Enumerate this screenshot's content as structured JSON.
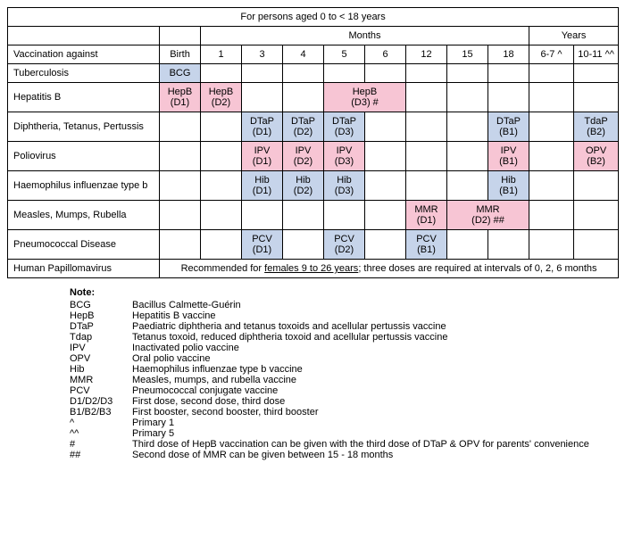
{
  "title": "For persons aged 0 to < 18 years",
  "headers": {
    "months": "Months",
    "years": "Years",
    "vaccination_against": "Vaccination against",
    "birth": "Birth",
    "m1": "1",
    "m3": "3",
    "m4": "4",
    "m5": "5",
    "m6": "6",
    "m12": "12",
    "m15": "15",
    "m18": "18",
    "y6_7": "6-7 ^",
    "y10_11": "10-11 ^^"
  },
  "rows": {
    "tb": {
      "label": "Tuberculosis",
      "birth": {
        "l1": "BCG",
        "l2": ""
      }
    },
    "hepb": {
      "label": "Hepatitis B",
      "birth": {
        "l1": "HepB",
        "l2": "(D1)"
      },
      "m1": {
        "l1": "HepB",
        "l2": "(D2)"
      },
      "m5_6": {
        "l1": "HepB",
        "l2": "(D3) #"
      }
    },
    "dtap": {
      "label": "Diphtheria, Tetanus, Pertussis",
      "m3": {
        "l1": "DTaP",
        "l2": "(D1)"
      },
      "m4": {
        "l1": "DTaP",
        "l2": "(D2)"
      },
      "m5": {
        "l1": "DTaP",
        "l2": "(D3)"
      },
      "m18": {
        "l1": "DTaP",
        "l2": "(B1)"
      },
      "y10_11": {
        "l1": "TdaP",
        "l2": "(B2)"
      }
    },
    "polio": {
      "label": "Poliovirus",
      "m3": {
        "l1": "IPV",
        "l2": "(D1)"
      },
      "m4": {
        "l1": "IPV",
        "l2": "(D2)"
      },
      "m5": {
        "l1": "IPV",
        "l2": "(D3)"
      },
      "m18": {
        "l1": "IPV",
        "l2": "(B1)"
      },
      "y10_11": {
        "l1": "OPV",
        "l2": "(B2)"
      }
    },
    "hib": {
      "label": "Haemophilus influenzae type b",
      "m3": {
        "l1": "Hib",
        "l2": "(D1)"
      },
      "m4": {
        "l1": "Hib",
        "l2": "(D2)"
      },
      "m5": {
        "l1": "Hib",
        "l2": "(D3)"
      },
      "m18": {
        "l1": "Hib",
        "l2": "(B1)"
      }
    },
    "mmr": {
      "label": "Measles, Mumps, Rubella",
      "m12": {
        "l1": "MMR",
        "l2": "(D1)"
      },
      "m15_18": {
        "l1": "MMR",
        "l2": "(D2) ##"
      }
    },
    "pcv": {
      "label": "Pneumococcal Disease",
      "m3": {
        "l1": "PCV",
        "l2": "(D1)"
      },
      "m5": {
        "l1": "PCV",
        "l2": "(D2)"
      },
      "m12": {
        "l1": "PCV",
        "l2": "(B1)"
      }
    },
    "hpv": {
      "label": "Human Papillomavirus",
      "text_pre": "Recommended for ",
      "text_u": "females 9 to 26 years",
      "text_post": "; three doses are required at intervals of 0, 2, 6 months"
    }
  },
  "notes": {
    "title": "Note:",
    "items": [
      {
        "abbr": "BCG",
        "def": "Bacillus Calmette-Guérin"
      },
      {
        "abbr": "HepB",
        "def": "Hepatitis B vaccine"
      },
      {
        "abbr": "DTaP",
        "def": "Paediatric diphtheria and tetanus toxoids and acellular pertussis vaccine"
      },
      {
        "abbr": "Tdap",
        "def": "Tetanus toxoid, reduced diphtheria toxoid and acellular pertussis vaccine"
      },
      {
        "abbr": "IPV",
        "def": "Inactivated polio vaccine"
      },
      {
        "abbr": "OPV",
        "def": "Oral polio vaccine"
      },
      {
        "abbr": "Hib",
        "def": "Haemophilus influenzae type b vaccine"
      },
      {
        "abbr": "MMR",
        "def": "Measles, mumps, and rubella vaccine"
      },
      {
        "abbr": "PCV",
        "def": "Pneumococcal conjugate vaccine"
      },
      {
        "abbr": "D1/D2/D3",
        "def": "First dose, second dose, third dose"
      },
      {
        "abbr": "B1/B2/B3",
        "def": "First booster, second booster, third booster"
      },
      {
        "abbr": "^",
        "def": "Primary 1"
      },
      {
        "abbr": "^^",
        "def": "Primary 5"
      },
      {
        "abbr": "#",
        "def": "Third dose of HepB vaccination can be given with the third dose of DTaP & OPV for parents' convenience"
      },
      {
        "abbr": "##",
        "def": "Second dose of MMR can be given between 15 - 18 months"
      }
    ]
  },
  "colors": {
    "pink": "#f7c5d4",
    "blue": "#c6d4ea"
  }
}
